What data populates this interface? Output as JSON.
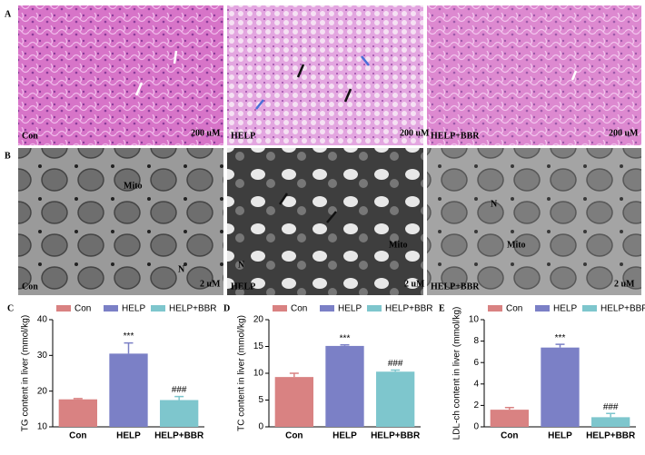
{
  "panels": {
    "A": {
      "label": "A",
      "captions": [
        "Con",
        "HELP",
        "HELP+BBR"
      ],
      "scale": "200 uM"
    },
    "B": {
      "label": "B",
      "captions": [
        "Con",
        "HELP",
        "HELP+BBR"
      ],
      "scale": "2 uM",
      "labels": [
        "Mito",
        "N",
        "N",
        "Mito",
        "N",
        "Mito"
      ]
    }
  },
  "chart_data": [
    {
      "type": "bar",
      "panel": "C",
      "y_label": "TG content in liver (mmol/kg)",
      "categories": [
        "Con",
        "HELP",
        "HELP+BBR"
      ],
      "values": [
        17.7,
        30.5,
        17.5
      ],
      "errors": [
        0.2,
        3.0,
        1.0
      ],
      "colors": [
        "#d98282",
        "#7b80c6",
        "#7ec6cd"
      ],
      "annotations": [
        {
          "category": "HELP",
          "text": "***"
        },
        {
          "category": "HELP+BBR",
          "text": "###"
        }
      ],
      "ylim": [
        10,
        40
      ],
      "yticks": [
        10,
        20,
        30,
        40
      ]
    },
    {
      "type": "bar",
      "panel": "D",
      "y_label": "TC content in liver (mmol/kg)",
      "categories": [
        "Con",
        "HELP",
        "HELP+BBR"
      ],
      "values": [
        9.3,
        15.1,
        10.3
      ],
      "errors": [
        0.7,
        0.2,
        0.3
      ],
      "colors": [
        "#d98282",
        "#7b80c6",
        "#7ec6cd"
      ],
      "annotations": [
        {
          "category": "HELP",
          "text": "***"
        },
        {
          "category": "HELP+BBR",
          "text": "###"
        }
      ],
      "ylim": [
        0,
        20
      ],
      "yticks": [
        0,
        5,
        10,
        15,
        20
      ]
    },
    {
      "type": "bar",
      "panel": "E",
      "y_label": "LDL-ch content in liver (mmol/kg)",
      "categories": [
        "Con",
        "HELP",
        "HELP+BBR"
      ],
      "values": [
        1.6,
        7.4,
        0.9
      ],
      "errors": [
        0.2,
        0.3,
        0.35
      ],
      "colors": [
        "#d98282",
        "#7b80c6",
        "#7ec6cd"
      ],
      "annotations": [
        {
          "category": "HELP",
          "text": "***"
        },
        {
          "category": "HELP+BBR",
          "text": "###"
        }
      ],
      "ylim": [
        0,
        10
      ],
      "yticks": [
        0,
        2,
        4,
        6,
        8,
        10
      ]
    }
  ]
}
